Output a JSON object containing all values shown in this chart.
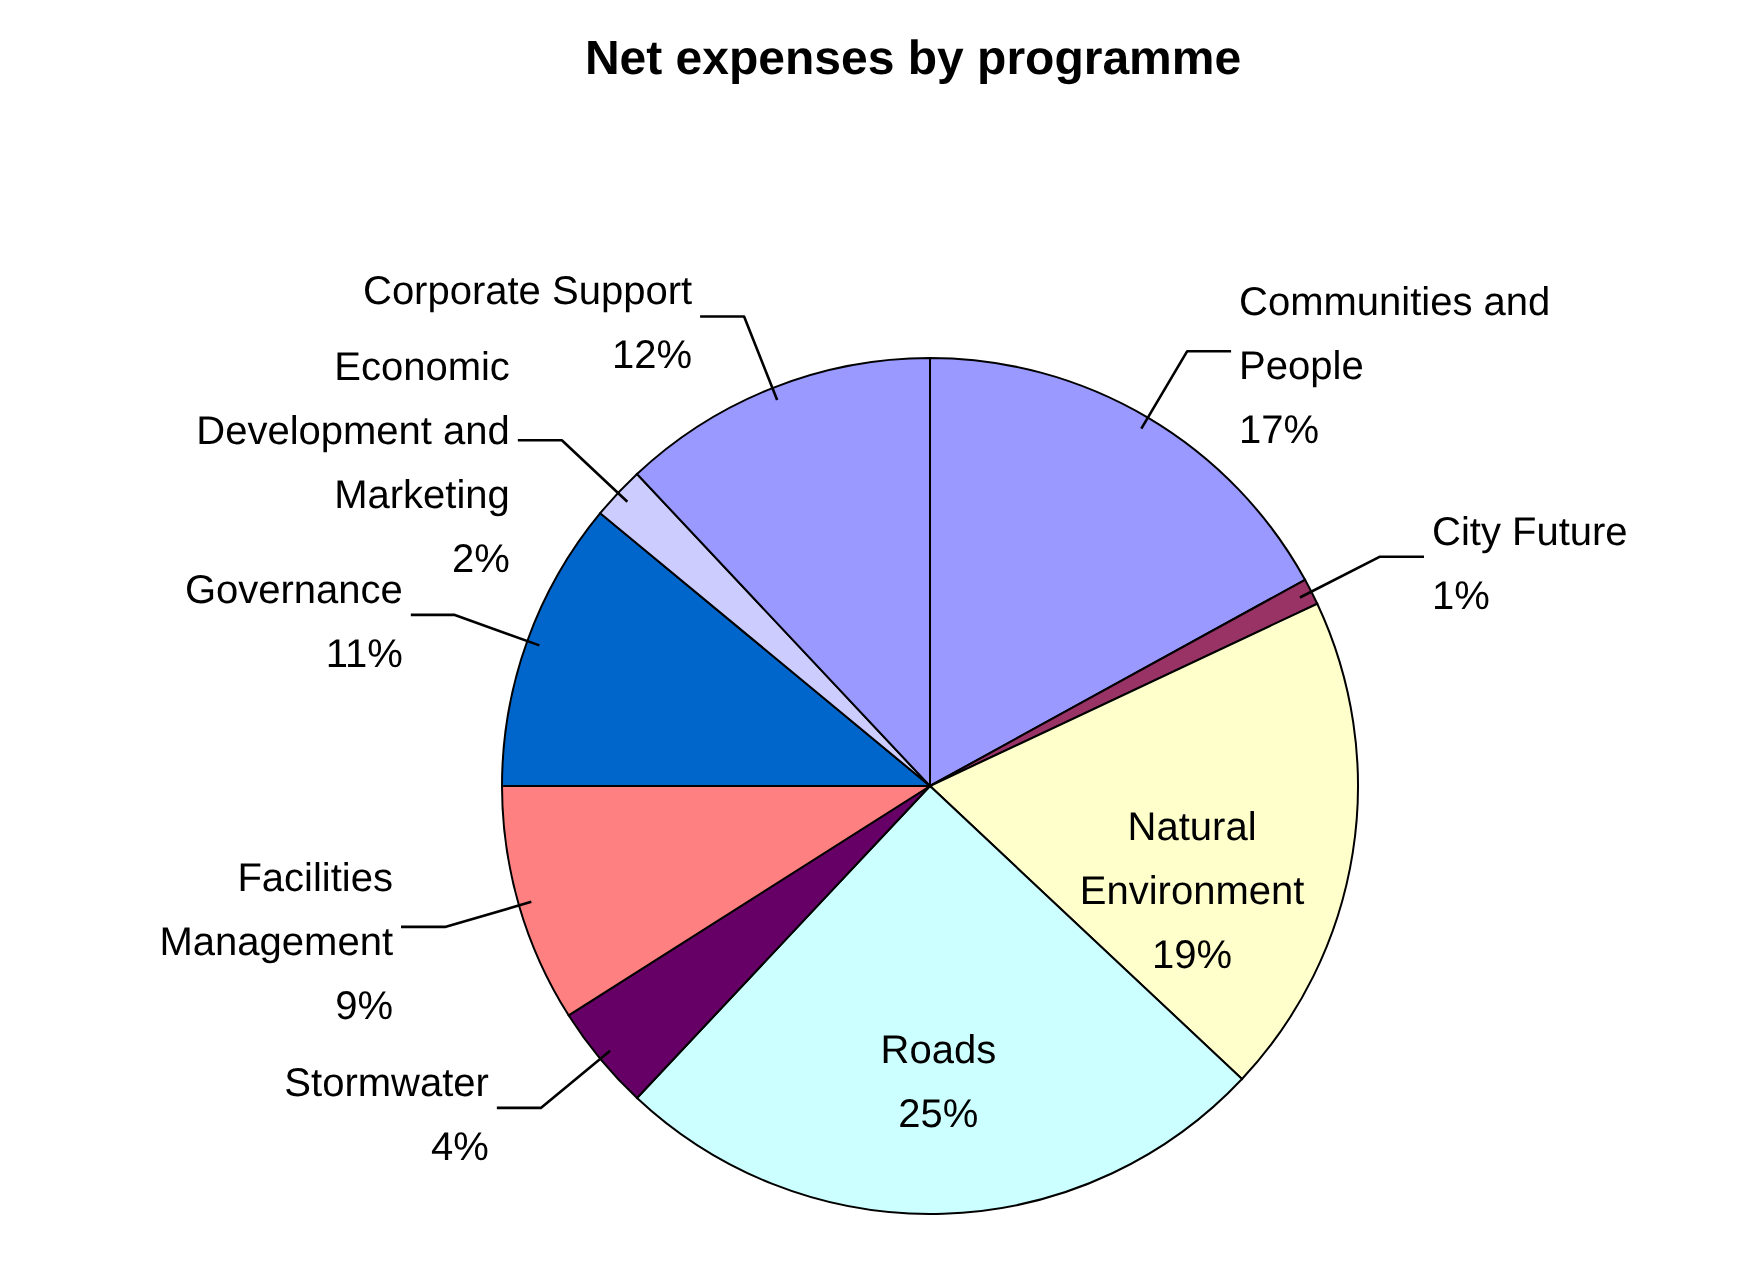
{
  "chart_data": {
    "type": "pie",
    "title": "Net expenses by programme",
    "categories": [
      "Communities and People",
      "City Future",
      "Natural Environment",
      "Roads",
      "Stormwater",
      "Facilities Management",
      "Governance",
      "Economic Development and Marketing",
      "Corporate Support"
    ],
    "values": [
      17,
      1,
      19,
      25,
      4,
      9,
      11,
      2,
      12
    ],
    "value_labels": [
      "17%",
      "1%",
      "19%",
      "25%",
      "4%",
      "9%",
      "11%",
      "2%",
      "12%"
    ],
    "colors": [
      "#9999ff",
      "#993366",
      "#ffffcc",
      "#ccffff",
      "#660066",
      "#ff8080",
      "#0066cc",
      "#ccccff",
      "#9999ff"
    ]
  }
}
